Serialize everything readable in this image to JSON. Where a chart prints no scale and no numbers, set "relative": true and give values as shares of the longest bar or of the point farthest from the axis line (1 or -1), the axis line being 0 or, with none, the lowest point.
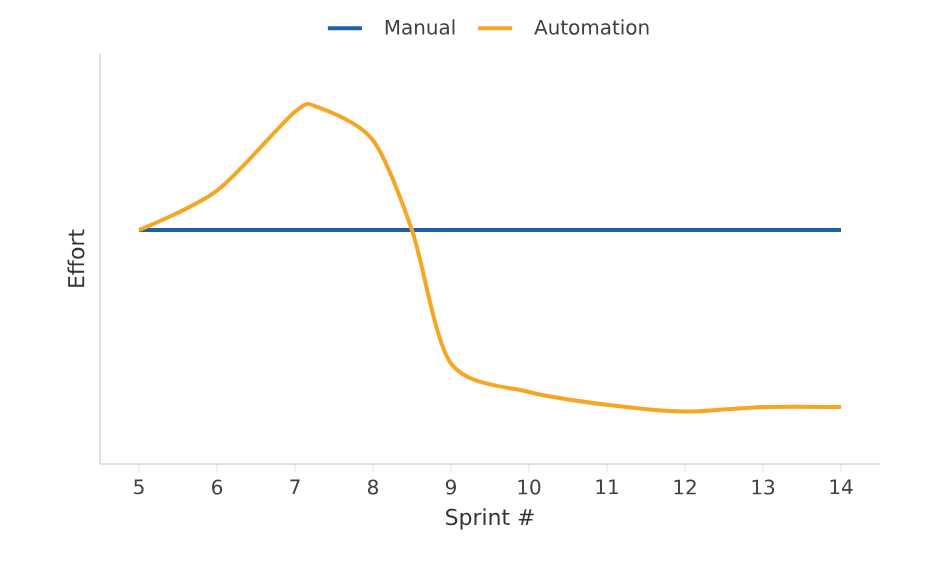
{
  "chart_data": {
    "type": "line",
    "xlabel": "Sprint #",
    "ylabel": "Effort",
    "relative": true,
    "xlim": [
      4.5,
      14.5
    ],
    "xticks": [
      5,
      6,
      7,
      8,
      9,
      10,
      11,
      12,
      13,
      14
    ],
    "grid": false,
    "legend": "top",
    "marker": "none",
    "line_style": "solid",
    "series": [
      {
        "name": "Manual",
        "color": "#1f5fa8",
        "x": [
          5,
          14
        ],
        "values": [
          0.656,
          0.656
        ]
      },
      {
        "name": "Automation",
        "color": "#f5a623",
        "x": [
          5,
          6,
          7,
          7.3,
          8,
          8.5,
          9,
          10,
          11,
          12,
          13,
          14
        ],
        "values": [
          0.656,
          0.767,
          0.988,
          1,
          0.908,
          0.656,
          0.282,
          0.202,
          0.166,
          0.147,
          0.16,
          0.16
        ]
      }
    ]
  }
}
